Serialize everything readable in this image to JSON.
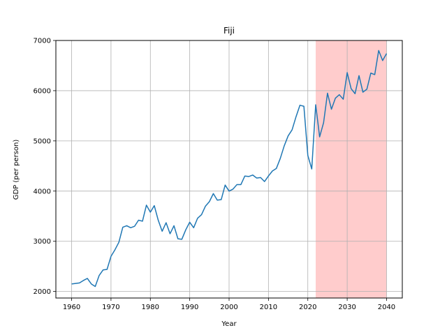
{
  "chart_data": {
    "type": "line",
    "title": "Fiji",
    "xlabel": "Year",
    "ylabel": "GDP (per person)",
    "xlim": [
      1956,
      2044
    ],
    "ylim": [
      1870,
      7000
    ],
    "xticks": [
      1960,
      1970,
      1980,
      1990,
      2000,
      2010,
      2020,
      2030,
      2040
    ],
    "yticks": [
      2000,
      3000,
      4000,
      5000,
      6000,
      7000
    ],
    "grid": true,
    "highlight_band": {
      "x_start": 2022,
      "x_end": 2040,
      "color": "#ffcccc"
    },
    "line_color": "#1f77b4",
    "series": [
      {
        "x": [
          1960,
          1961,
          1962,
          1963,
          1964,
          1965,
          1966,
          1967,
          1968,
          1969,
          1970,
          1971,
          1972,
          1973,
          1974,
          1975,
          1976,
          1977,
          1978,
          1979,
          1980,
          1981,
          1982,
          1983,
          1984,
          1985,
          1986,
          1987,
          1988,
          1989,
          1990,
          1991,
          1992,
          1993,
          1994,
          1995,
          1996,
          1997,
          1998,
          1999,
          2000,
          2001,
          2002,
          2003,
          2004,
          2005,
          2006,
          2007,
          2008,
          2009,
          2010,
          2011,
          2012,
          2013,
          2014,
          2015,
          2016,
          2017,
          2018,
          2019,
          2020,
          2021,
          2022,
          2023,
          2024,
          2025,
          2026,
          2027,
          2028,
          2029,
          2030,
          2031,
          2032,
          2033,
          2034,
          2035,
          2036,
          2037,
          2038,
          2039,
          2040
        ],
        "values": [
          2150,
          2160,
          2170,
          2220,
          2260,
          2150,
          2100,
          2320,
          2430,
          2440,
          2700,
          2830,
          2980,
          3280,
          3310,
          3270,
          3300,
          3420,
          3400,
          3720,
          3580,
          3710,
          3420,
          3200,
          3370,
          3150,
          3310,
          3050,
          3040,
          3230,
          3380,
          3270,
          3460,
          3530,
          3700,
          3790,
          3950,
          3820,
          3830,
          4120,
          4000,
          4040,
          4130,
          4130,
          4300,
          4290,
          4320,
          4260,
          4270,
          4190,
          4300,
          4400,
          4450,
          4650,
          4900,
          5100,
          5220,
          5480,
          5710,
          5690,
          4710,
          4440,
          5720,
          5080,
          5360,
          5950,
          5630,
          5850,
          5920,
          5830,
          6360,
          6040,
          5940,
          6300,
          5970,
          6030,
          6350,
          6320,
          6800,
          6600,
          6740
        ]
      }
    ]
  }
}
